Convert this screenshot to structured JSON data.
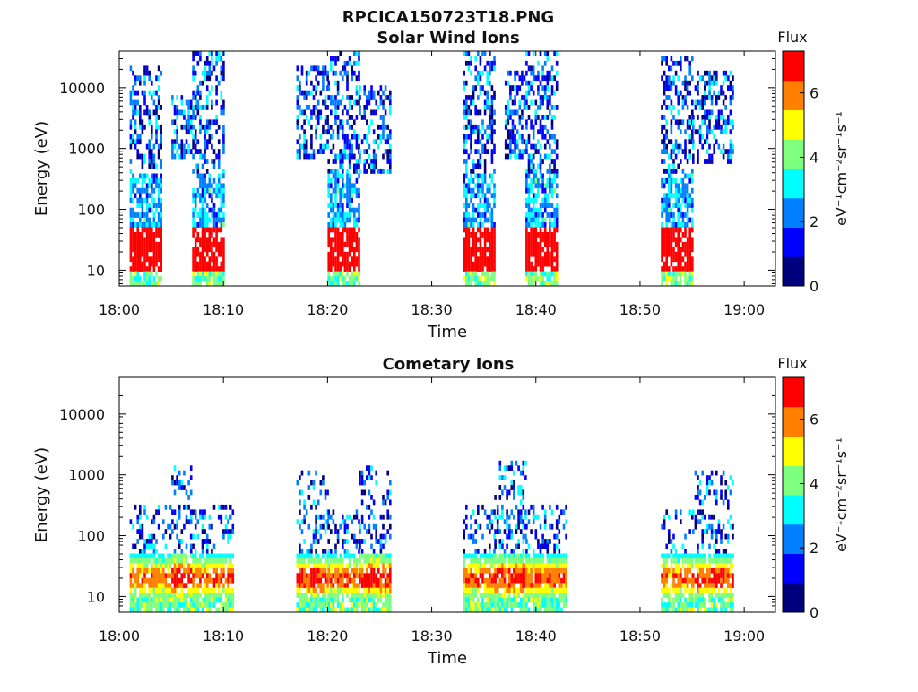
{
  "figure": {
    "title": "RPCICA150723T18.PNG"
  },
  "colormap": [
    "#00007f",
    "#0000ff",
    "#007fff",
    "#00ffff",
    "#7fff7f",
    "#ffff00",
    "#ff7f00",
    "#ff0000",
    "#7f0000"
  ],
  "chart_data": [
    {
      "type": "heatmap",
      "title": "Solar Wind Ions",
      "xlabel": "Time",
      "ylabel": "Energy (eV)",
      "ylog": true,
      "xlim": [
        "18:00",
        "19:03"
      ],
      "ylim": [
        5.5,
        40000
      ],
      "xticks": [
        "18:00",
        "18:10",
        "18:20",
        "18:30",
        "18:40",
        "18:50",
        "19:00"
      ],
      "yticks": [
        10,
        100,
        1000,
        10000
      ],
      "ytick_labels": [
        "10",
        "100",
        "1000",
        "10000"
      ],
      "colorbar": {
        "label": "Flux",
        "unit": "eV⁻¹cm⁻²sr⁻¹s⁻¹",
        "range": [
          0,
          7.3
        ],
        "ticks": [
          0,
          2,
          4,
          6
        ]
      },
      "bursts": [
        {
          "start": "18:01",
          "end": "18:04",
          "emax": 20000,
          "emin": 6,
          "base": 6.5,
          "peak": 7
        },
        {
          "start": "18:05",
          "end": "18:07",
          "emax": 7000,
          "emin": 700,
          "base": 2.8,
          "peak": 0
        },
        {
          "start": "18:07",
          "end": "18:10",
          "emax": 40000,
          "emin": 6,
          "base": 6.5,
          "peak": 7
        },
        {
          "start": "18:17",
          "end": "18:20",
          "emax": 20000,
          "emin": 700,
          "base": 2.8,
          "peak": 0
        },
        {
          "start": "18:20",
          "end": "18:23",
          "emax": 35000,
          "emin": 6,
          "base": 6.5,
          "peak": 7
        },
        {
          "start": "18:23",
          "end": "18:26",
          "emax": 10000,
          "emin": 400,
          "base": 2.8,
          "peak": 0
        },
        {
          "start": "18:33",
          "end": "18:36",
          "emax": 40000,
          "emin": 6,
          "base": 6.5,
          "peak": 7
        },
        {
          "start": "18:37",
          "end": "18:39",
          "emax": 18000,
          "emin": 700,
          "base": 2.8,
          "peak": 0
        },
        {
          "start": "18:39",
          "end": "18:42",
          "emax": 40000,
          "emin": 6,
          "base": 6.5,
          "peak": 7
        },
        {
          "start": "18:52",
          "end": "18:55",
          "emax": 28000,
          "emin": 6,
          "base": 6.5,
          "peak": 7
        },
        {
          "start": "18:55",
          "end": "18:59",
          "emax": 16000,
          "emin": 600,
          "base": 2.8,
          "peak": 0
        }
      ]
    },
    {
      "type": "heatmap",
      "title": "Cometary Ions",
      "xlabel": "Time",
      "ylabel": "Energy (eV)",
      "ylog": true,
      "xlim": [
        "18:00",
        "19:03"
      ],
      "ylim": [
        5.5,
        40000
      ],
      "xticks": [
        "18:00",
        "18:10",
        "18:20",
        "18:30",
        "18:40",
        "18:50",
        "19:00"
      ],
      "yticks": [
        10,
        100,
        1000,
        10000
      ],
      "ytick_labels": [
        "10",
        "100",
        "1000",
        "10000"
      ],
      "colorbar": {
        "label": "Flux",
        "unit": "eV⁻¹cm⁻²sr⁻¹s⁻¹",
        "range": [
          0,
          7.3
        ],
        "ticks": [
          0,
          2,
          4,
          6
        ]
      },
      "bursts": [
        {
          "start": "18:01",
          "end": "18:05",
          "emax": 300,
          "emin": 6,
          "base": 2.5,
          "peak": 6.5
        },
        {
          "start": "18:05",
          "end": "18:07",
          "emax": 1200,
          "emin": 6,
          "base": 3.2,
          "peak": 7.2
        },
        {
          "start": "18:07",
          "end": "18:11",
          "emax": 300,
          "emin": 6,
          "base": 2.5,
          "peak": 6.8
        },
        {
          "start": "18:17",
          "end": "18:20",
          "emax": 1100,
          "emin": 6,
          "base": 2.8,
          "peak": 7.2
        },
        {
          "start": "18:20",
          "end": "18:23",
          "emax": 250,
          "emin": 6,
          "base": 2.5,
          "peak": 6.8
        },
        {
          "start": "18:23",
          "end": "18:26",
          "emax": 1200,
          "emin": 6,
          "base": 3.0,
          "peak": 7.3
        },
        {
          "start": "18:33",
          "end": "18:36",
          "emax": 300,
          "emin": 6,
          "base": 2.5,
          "peak": 6.8
        },
        {
          "start": "18:36",
          "end": "18:39",
          "emax": 1500,
          "emin": 6,
          "base": 3.0,
          "peak": 7.2
        },
        {
          "start": "18:39",
          "end": "18:43",
          "emax": 300,
          "emin": 6,
          "base": 2.5,
          "peak": 6.8
        },
        {
          "start": "18:52",
          "end": "18:55",
          "emax": 250,
          "emin": 6,
          "base": 2.5,
          "peak": 6.5
        },
        {
          "start": "18:55",
          "end": "18:59",
          "emax": 1100,
          "emin": 6,
          "base": 2.8,
          "peak": 7.0
        }
      ]
    }
  ]
}
